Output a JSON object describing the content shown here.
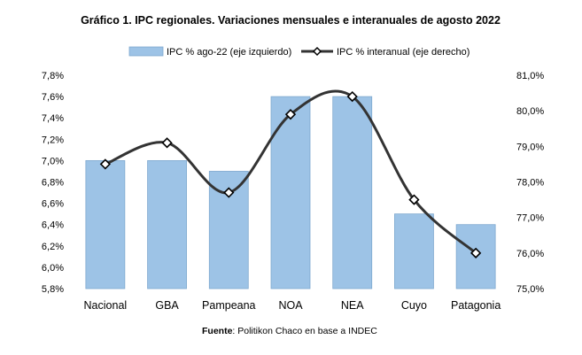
{
  "chart_data": {
    "type": "bar+line",
    "title": "Gráfico 1. IPC regionales. Variaciones mensuales e interanuales de agosto 2022",
    "categories": [
      "Nacional",
      "GBA",
      "Pampeana",
      "NOA",
      "NEA",
      "Cuyo",
      "Patagonia"
    ],
    "series": [
      {
        "name": "IPC % ago-22 (eje izquierdo)",
        "type": "bar",
        "axis": "left",
        "color": "#9dc3e6",
        "values": [
          7.0,
          7.0,
          6.9,
          7.6,
          7.6,
          6.5,
          6.4
        ]
      },
      {
        "name": "IPC % interanual (eje derecho)",
        "type": "line",
        "axis": "right",
        "color": "#333333",
        "smooth": true,
        "marker": "diamond",
        "values": [
          78.5,
          79.1,
          77.7,
          79.9,
          80.4,
          77.5,
          76.0
        ]
      }
    ],
    "y_left": {
      "lim": [
        5.8,
        7.8
      ],
      "ticks": [
        "5,8%",
        "6,0%",
        "6,2%",
        "6,4%",
        "6,6%",
        "6,8%",
        "7,0%",
        "7,2%",
        "7,4%",
        "7,6%",
        "7,8%"
      ]
    },
    "y_right": {
      "lim": [
        75.0,
        81.0
      ],
      "ticks": [
        "75,0%",
        "76,0%",
        "77,0%",
        "78,0%",
        "79,0%",
        "80,0%",
        "81,0%"
      ]
    },
    "legend_position": "top",
    "grid": false
  },
  "footer": {
    "source_label": "Fuente",
    "source_text": ": Politikon Chaco en base a INDEC"
  }
}
